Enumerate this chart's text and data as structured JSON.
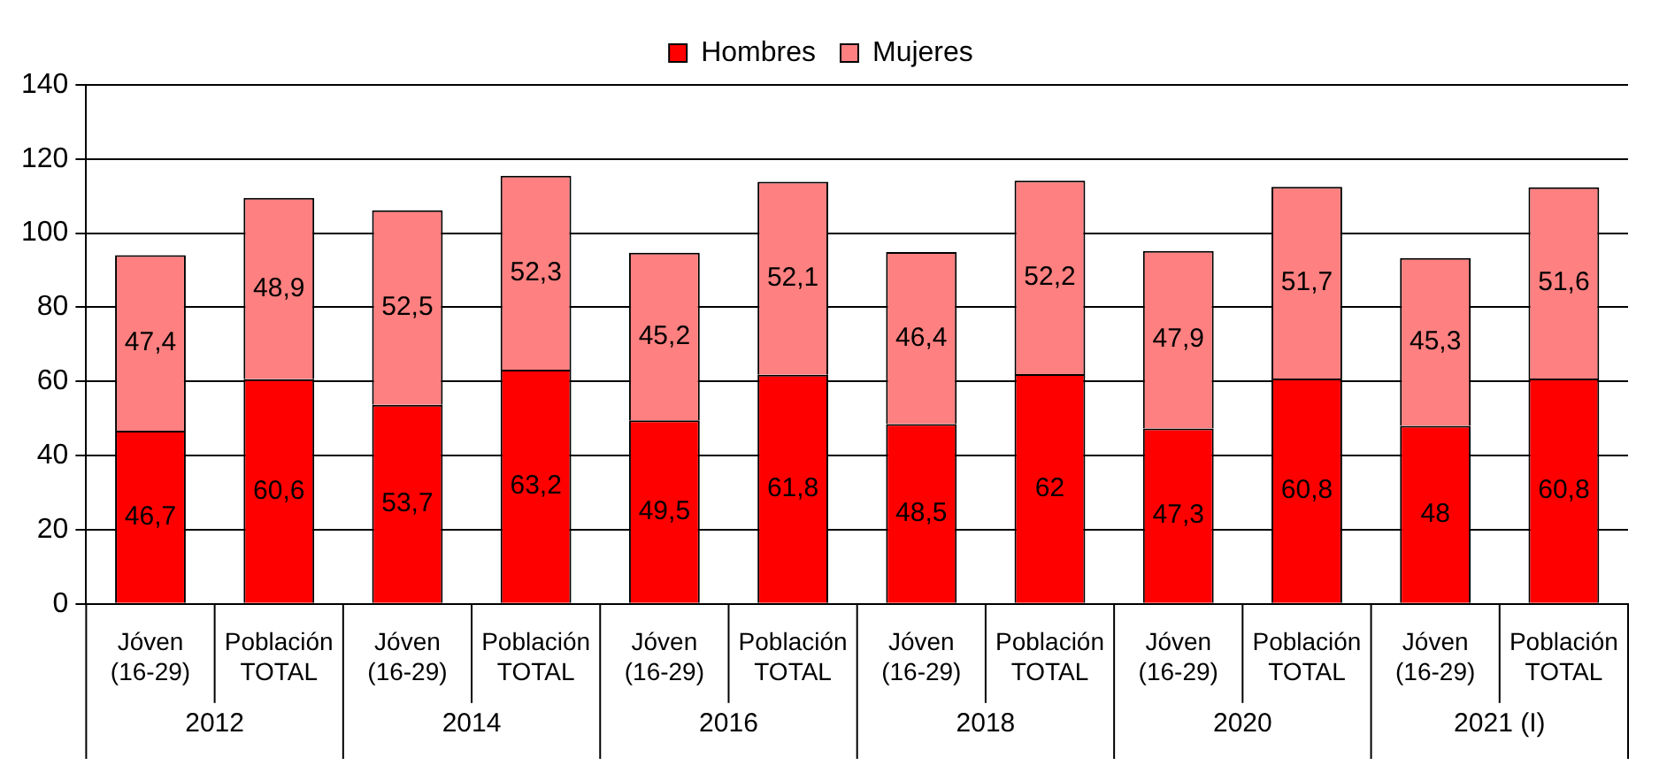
{
  "chart_data": {
    "type": "bar",
    "stacked": true,
    "categories": [
      "Jóven (16-29)",
      "Población TOTAL",
      "Jóven (16-29)",
      "Población TOTAL",
      "Jóven (16-29)",
      "Población TOTAL",
      "Jóven (16-29)",
      "Población TOTAL",
      "Jóven (16-29)",
      "Población TOTAL",
      "Jóven (16-29)",
      "Población TOTAL"
    ],
    "series": [
      {
        "name": "Hombres",
        "color": "#ff0000",
        "values": [
          46.7,
          60.6,
          53.7,
          63.2,
          49.5,
          61.8,
          48.5,
          62,
          47.3,
          60.8,
          48,
          60.8
        ],
        "value_labels": [
          "46,7",
          "60,6",
          "53,7",
          "63,2",
          "49,5",
          "61,8",
          "48,5",
          "62",
          "47,3",
          "60,8",
          "48",
          "60,8"
        ]
      },
      {
        "name": "Mujeres",
        "color": "#ff8080",
        "values": [
          47.4,
          48.9,
          52.5,
          52.3,
          45.2,
          52.1,
          46.4,
          52.2,
          47.9,
          51.7,
          45.3,
          51.6
        ],
        "value_labels": [
          "47,4",
          "48,9",
          "52,5",
          "52,3",
          "45,2",
          "52,1",
          "46,4",
          "52,2",
          "47,9",
          "51,7",
          "45,3",
          "51,6"
        ]
      }
    ],
    "ylim": [
      0,
      140
    ],
    "yticks": [
      0,
      20,
      40,
      60,
      80,
      100,
      120,
      140
    ],
    "grid": "y",
    "legend": "top",
    "annotations": [
      "2012",
      "2014",
      "2016",
      "2018",
      "2020",
      "2021 (I)"
    ]
  }
}
